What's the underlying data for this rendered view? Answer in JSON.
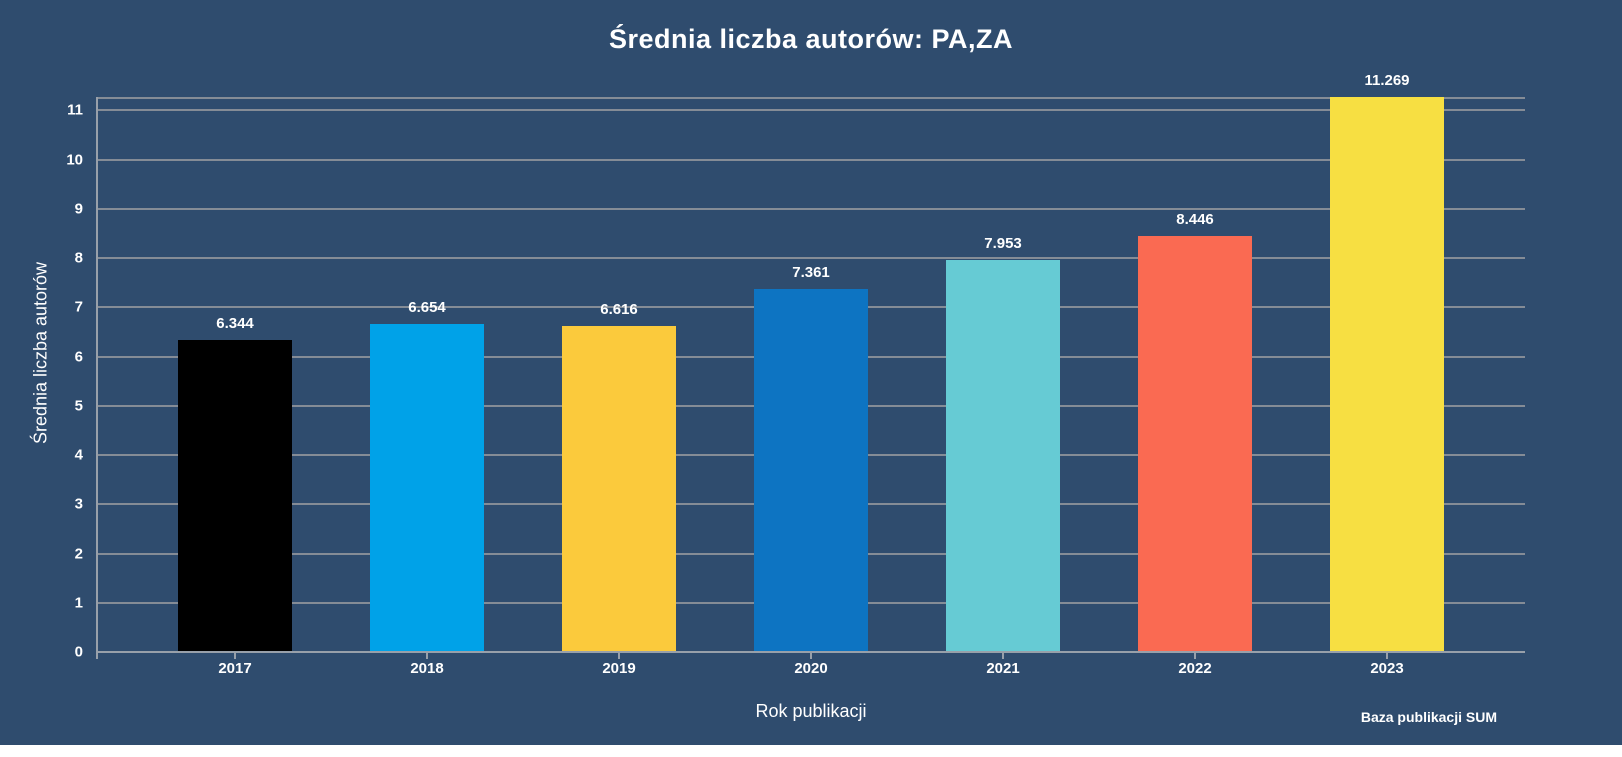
{
  "footer": {
    "source_label": "Baza publikacji SUM"
  },
  "colors": {
    "background": "#2F4C6E",
    "gridline": "#858C96",
    "axis": "#98A0AA",
    "text": "#FFFFFF"
  },
  "chart_data": {
    "type": "bar",
    "title": "Średnia liczba autorów: PA,ZA",
    "xlabel": "Rok publikacji",
    "ylabel": "Średnia liczba autorów",
    "categories": [
      "2017",
      "2018",
      "2019",
      "2020",
      "2021",
      "2022",
      "2023"
    ],
    "values": [
      6.344,
      6.654,
      6.616,
      7.361,
      7.953,
      8.446,
      11.269
    ],
    "value_labels": [
      "6.344",
      "6.654",
      "6.616",
      "7.361",
      "7.953",
      "8.446",
      "11.269"
    ],
    "bar_colors": [
      "#000000",
      "#00A2E8",
      "#FBCA3C",
      "#0D74C2",
      "#66CBD4",
      "#FA6A52",
      "#F7DF42"
    ],
    "ylim": [
      0,
      11.269
    ],
    "yticks": [
      0,
      1,
      2,
      3,
      4,
      5,
      6,
      7,
      8,
      9,
      10,
      11
    ],
    "grid": true,
    "legend": "none"
  }
}
